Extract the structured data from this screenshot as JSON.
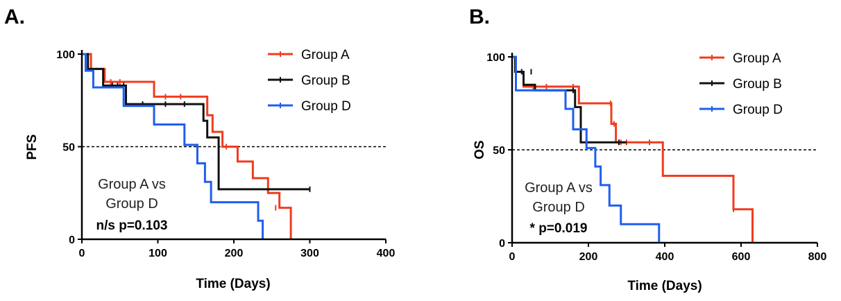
{
  "chart_data": [
    {
      "panel": "A.",
      "type": "line",
      "xlabel": "Time (Days)",
      "ylabel": "PFS",
      "xlim": [
        0,
        400
      ],
      "ylim": [
        0,
        100
      ],
      "x_ticks": [
        0,
        100,
        200,
        300,
        400
      ],
      "y_ticks": [
        0,
        50,
        100
      ],
      "reference_line": 50,
      "legend_position": "top-right",
      "annotation": [
        "Group A vs",
        "Group D",
        "n/s p=0.103"
      ],
      "series": [
        {
          "name": "Group A",
          "color": "#f03c1e",
          "steps": [
            [
              0,
              100
            ],
            [
              12,
              92
            ],
            [
              30,
              85
            ],
            [
              95,
              77
            ],
            [
              165,
              67
            ],
            [
              172,
              58
            ],
            [
              185,
              50
            ],
            [
              205,
              42
            ],
            [
              225,
              33
            ],
            [
              245,
              25
            ],
            [
              260,
              17
            ],
            [
              275,
              0
            ]
          ],
          "end": 275,
          "censors": [
            [
              38,
              85
            ],
            [
              50,
              85
            ],
            [
              110,
              77
            ],
            [
              130,
              77
            ],
            [
              190,
              50
            ],
            [
              255,
              17
            ]
          ]
        },
        {
          "name": "Group B",
          "color": "#111111",
          "steps": [
            [
              0,
              100
            ],
            [
              8,
              92
            ],
            [
              28,
              83
            ],
            [
              58,
              73
            ],
            [
              160,
              64
            ],
            [
              165,
              55
            ],
            [
              180,
              27
            ]
          ],
          "end": 300,
          "censors": [
            [
              40,
              83
            ],
            [
              47,
              83
            ],
            [
              55,
              83
            ],
            [
              80,
              73
            ],
            [
              110,
              73
            ],
            [
              135,
              73
            ],
            [
              300,
              27
            ]
          ]
        },
        {
          "name": "Group D",
          "color": "#1f5ef0",
          "steps": [
            [
              0,
              100
            ],
            [
              5,
              91
            ],
            [
              15,
              82
            ],
            [
              55,
              72
            ],
            [
              95,
              62
            ],
            [
              135,
              51
            ],
            [
              152,
              41
            ],
            [
              162,
              31
            ],
            [
              170,
              20
            ],
            [
              232,
              10
            ],
            [
              238,
              0
            ]
          ],
          "end": 238,
          "censors": []
        }
      ]
    },
    {
      "panel": "B.",
      "type": "line",
      "xlabel": "Time (Days)",
      "ylabel": "OS",
      "xlim": [
        0,
        800
      ],
      "ylim": [
        0,
        100
      ],
      "x_ticks": [
        0,
        200,
        400,
        600,
        800
      ],
      "y_ticks": [
        0,
        50,
        100
      ],
      "reference_line": 50,
      "legend_position": "top-right",
      "annotation": [
        "Group A vs",
        "Group D",
        "* p=0.019"
      ],
      "series": [
        {
          "name": "Group A",
          "color": "#f03c1e",
          "steps": [
            [
              0,
              100
            ],
            [
              10,
              92
            ],
            [
              30,
              84
            ],
            [
              175,
              75
            ],
            [
              260,
              64
            ],
            [
              272,
              54
            ],
            [
              395,
              36
            ],
            [
              580,
              18
            ],
            [
              630,
              0
            ]
          ],
          "end": 630,
          "censors": [
            [
              55,
              84
            ],
            [
              90,
              84
            ],
            [
              160,
              84
            ],
            [
              258,
              75
            ],
            [
              267,
              64
            ],
            [
              285,
              54
            ],
            [
              300,
              54
            ],
            [
              360,
              54
            ],
            [
              580,
              18
            ]
          ]
        },
        {
          "name": "Group B",
          "color": "#111111",
          "steps": [
            [
              0,
              100
            ],
            [
              8,
              92
            ],
            [
              30,
              85
            ],
            [
              60,
              82
            ],
            [
              165,
              73
            ],
            [
              180,
              54
            ]
          ],
          "end": 300,
          "censors": [
            [
              25,
              92
            ],
            [
              50,
              92
            ],
            [
              160,
              82
            ],
            [
              280,
              54
            ]
          ]
        },
        {
          "name": "Group D",
          "color": "#1f5ef0",
          "steps": [
            [
              0,
              100
            ],
            [
              10,
              82
            ],
            [
              140,
              72
            ],
            [
              160,
              61
            ],
            [
              195,
              51
            ],
            [
              218,
              41
            ],
            [
              232,
              31
            ],
            [
              255,
              20
            ],
            [
              285,
              10
            ],
            [
              385,
              0
            ]
          ],
          "end": 385,
          "censors": []
        }
      ]
    }
  ]
}
